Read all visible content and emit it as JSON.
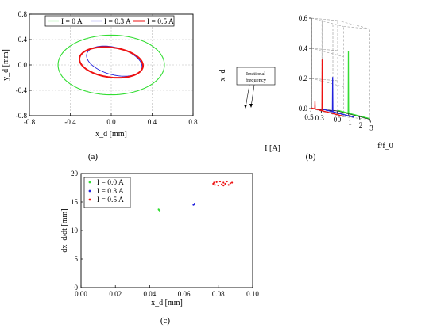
{
  "figure": {
    "captions": [
      "(a)",
      "(b)",
      "(c)"
    ]
  },
  "chart_data": [
    {
      "panel": "(a)",
      "type": "line",
      "xlabel": "x_d [mm]",
      "ylabel": "y_d [mm]",
      "xlim": [
        -0.8,
        0.8
      ],
      "ylim": [
        -0.8,
        0.8
      ],
      "x_ticks": [
        "-0.8",
        "-0.4",
        "0.0",
        "0.4",
        "0.8"
      ],
      "y_ticks": [
        "-0.8",
        "-0.4",
        "0.0",
        "0.4",
        "0.8"
      ],
      "legend_position": "top",
      "grid": true,
      "series": [
        {
          "name": "I = 0 A",
          "color": "#33dd33",
          "center": [
            0.0,
            0.0
          ],
          "semi_axes": [
            0.52,
            0.47
          ],
          "tilt_deg": 0
        },
        {
          "name": "I = 0.3 A",
          "color": "#2222dd",
          "center": [
            0.03,
            0.06
          ],
          "semi_axes": [
            0.3,
            0.2
          ],
          "tilt_deg": -35
        },
        {
          "name": "I = 0.5 A",
          "color": "#ee1111",
          "center": [
            0.0,
            0.04
          ],
          "semi_axes": [
            0.32,
            0.23
          ],
          "tilt_deg": -20
        }
      ]
    },
    {
      "panel": "(b)",
      "type": "line",
      "xlabel": "f/f_0",
      "ylabel": "x_d",
      "zlabel": "I [A]",
      "x_ticks": [
        "0",
        "1",
        "2",
        "3"
      ],
      "y_ticks": [
        "0.0",
        "0.2",
        "0.4",
        "0.6"
      ],
      "z_ticks": [
        "0",
        "0.3",
        "0.5"
      ],
      "annotation": "Irrational frequency",
      "series": [
        {
          "name": "I = 0.5 A",
          "color": "#ee1111",
          "current": 0.5,
          "peaks": [
            {
              "f": 0.33,
              "amp": 0.05
            },
            {
              "f": 1.0,
              "amp": 0.34
            }
          ]
        },
        {
          "name": "I = 0.3 A",
          "color": "#2222dd",
          "current": 0.3,
          "peaks": [
            {
              "f": 1.0,
              "amp": 0.23
            }
          ]
        },
        {
          "name": "I = 0 A",
          "color": "#33dd33",
          "current": 0.0,
          "peaks": [
            {
              "f": 1.0,
              "amp": 0.41
            }
          ]
        }
      ]
    },
    {
      "panel": "(c)",
      "type": "scatter",
      "xlabel": "x_d [mm]",
      "ylabel": "dx_d/dt [mm]",
      "xlim": [
        0.0,
        0.1
      ],
      "ylim": [
        0,
        20
      ],
      "x_ticks": [
        "0.00",
        "0.02",
        "0.04",
        "0.06",
        "0.08",
        "0.10"
      ],
      "y_ticks": [
        "0",
        "5",
        "10",
        "15",
        "20"
      ],
      "legend_position": "top-left",
      "series": [
        {
          "name": "I = 0.0 A",
          "color": "#33dd33",
          "points": [
            [
              0.0455,
              13.6
            ],
            [
              0.0458,
              13.5
            ],
            [
              0.0452,
              13.7
            ]
          ]
        },
        {
          "name": "I = 0.3 A",
          "color": "#2222dd",
          "points": [
            [
              0.0655,
              14.5
            ],
            [
              0.066,
              14.6
            ],
            [
              0.0662,
              14.7
            ]
          ]
        },
        {
          "name": "I = 0.5 A",
          "color": "#ee1111",
          "points": [
            [
              0.077,
              18.2
            ],
            [
              0.079,
              18.5
            ],
            [
              0.081,
              18.6
            ],
            [
              0.083,
              18.4
            ],
            [
              0.085,
              18.6
            ],
            [
              0.087,
              18.3
            ],
            [
              0.086,
              18.0
            ],
            [
              0.083,
              17.9
            ],
            [
              0.08,
              17.9
            ],
            [
              0.078,
              18.0
            ],
            [
              0.0775,
              18.4
            ],
            [
              0.082,
              18.1
            ],
            [
              0.084,
              18.2
            ],
            [
              0.088,
              18.4
            ]
          ]
        }
      ]
    }
  ]
}
